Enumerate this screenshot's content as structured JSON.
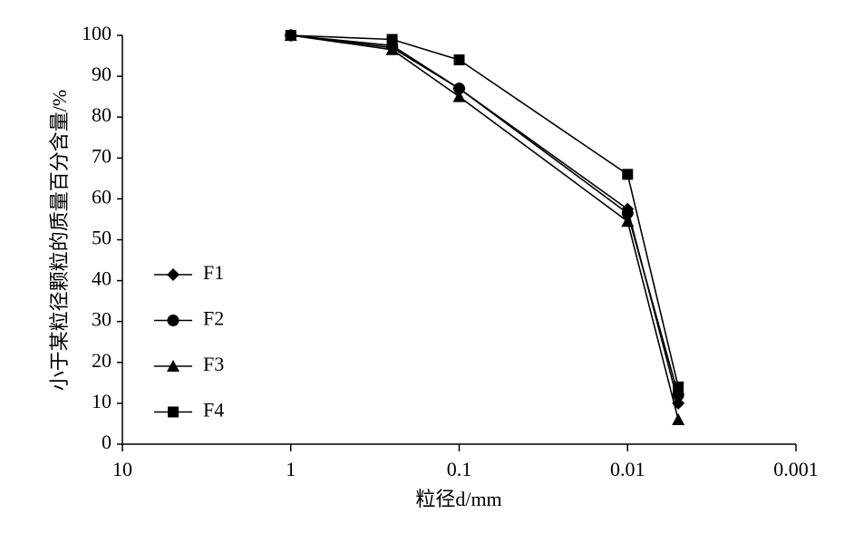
{
  "chart_data": {
    "type": "line",
    "x_label": "粒径d/mm",
    "y_label": "小于某粒径颗粒的质量百分含量/%",
    "x": [
      1,
      0.25,
      0.1,
      0.01,
      0.005
    ],
    "series": [
      {
        "name": "F1",
        "color": "#000000",
        "marker": "diamond",
        "values": [
          100,
          97,
          87,
          57.5,
          10
        ]
      },
      {
        "name": "F2",
        "color": "#000000",
        "marker": "circle",
        "values": [
          100,
          97.5,
          87,
          56.5,
          12
        ]
      },
      {
        "name": "F3",
        "color": "#000000",
        "marker": "triangle",
        "values": [
          100,
          96.5,
          85,
          54.5,
          6
        ]
      },
      {
        "name": "F4",
        "color": "#000000",
        "marker": "square",
        "values": [
          100,
          99,
          94,
          66,
          14
        ]
      }
    ],
    "xlim": [
      10,
      0.001
    ],
    "xticks": [
      10,
      1,
      0.1,
      0.01,
      0.001
    ],
    "x_log": true,
    "ylim": [
      0,
      100
    ],
    "yticks": [
      0,
      10,
      20,
      30,
      40,
      50,
      60,
      70,
      80,
      90,
      100
    ],
    "grid": false,
    "legend": "left"
  }
}
